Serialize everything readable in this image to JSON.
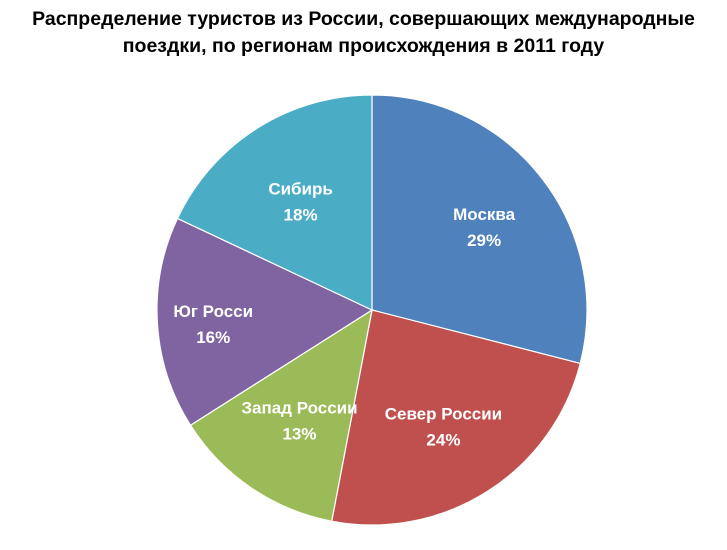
{
  "chart_data": {
    "type": "pie",
    "title_lines": [
      "Распределение туристов из России, совершающих международные",
      "поездки, по регионам происхождения в 2011 году"
    ],
    "slices": [
      {
        "label": "Москва",
        "value": 29,
        "value_label": "29%",
        "color": "#4F81BD"
      },
      {
        "label": "Север России",
        "value": 24,
        "value_label": "24%",
        "color": "#C0504D"
      },
      {
        "label": "Запад России",
        "value": 13,
        "value_label": "13%",
        "color": "#9BBB59"
      },
      {
        "label": "Юг Росси",
        "value": 16,
        "value_label": "16%",
        "color": "#8064A2"
      },
      {
        "label": "Сибирь",
        "value": 18,
        "value_label": "18%",
        "color": "#4BACC6"
      }
    ],
    "start": "12 o'clock",
    "direction": "clockwise",
    "legend": "none"
  }
}
